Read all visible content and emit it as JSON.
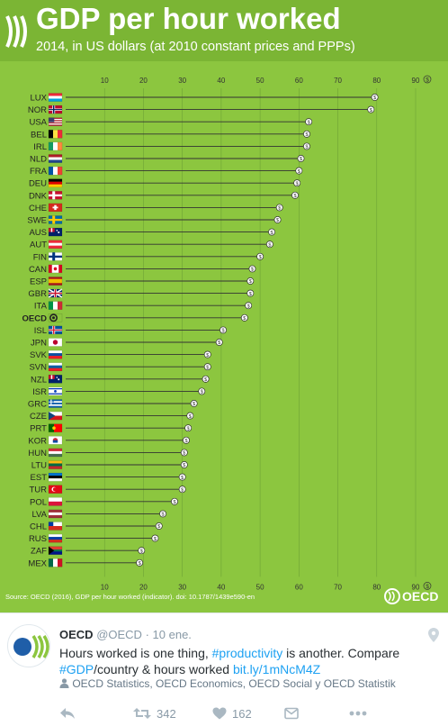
{
  "header": {
    "title": "GDP per hour worked",
    "subtitle": "2014, in US dollars (at 2010 constant prices and PPPs)",
    "source": "Source: OECD (2016), GDP per hour worked (indicator). doi: 10.1787/1439e590-en",
    "logo_text": "OECD"
  },
  "colors": {
    "background": "#8cc63f",
    "header_band": "#7bb534",
    "bar_line": "#333333",
    "grid": "#6fa336",
    "text_white": "#ffffff",
    "link_blue": "#1da1f2"
  },
  "chart_data": {
    "type": "bar",
    "orientation": "horizontal",
    "title": "GDP per hour worked",
    "subtitle": "2014, in US dollars (at 2010 constant prices and PPPs)",
    "xlim": [
      0,
      90
    ],
    "x_ticks": [
      10,
      20,
      30,
      40,
      50,
      60,
      70,
      80,
      90
    ],
    "x_unit_symbol": "$",
    "grid": true,
    "categories": [
      "LUX",
      "NOR",
      "USA",
      "BEL",
      "IRL",
      "NLD",
      "FRA",
      "DEU",
      "DNK",
      "CHE",
      "SWE",
      "AUS",
      "AUT",
      "FIN",
      "CAN",
      "ESP",
      "GBR",
      "ITA",
      "OECD",
      "ISL",
      "JPN",
      "SVK",
      "SVN",
      "NZL",
      "ISR",
      "GRC",
      "CZE",
      "PRT",
      "KOR",
      "HUN",
      "LTU",
      "EST",
      "TUR",
      "POL",
      "LVA",
      "CHL",
      "RUS",
      "ZAF",
      "MEX"
    ],
    "values": [
      79.5,
      78.5,
      62.5,
      62,
      62,
      60.5,
      60,
      59.5,
      59,
      55,
      54.5,
      53,
      52.5,
      50,
      48,
      47.5,
      47.5,
      47,
      46,
      40.5,
      39.5,
      36.5,
      36.5,
      36,
      35,
      33,
      32,
      31.5,
      31,
      30.5,
      30.5,
      30,
      30,
      28,
      25,
      24,
      23,
      19.5,
      19
    ],
    "flags": [
      "lux",
      "nor",
      "usa",
      "bel",
      "irl",
      "nld",
      "fra",
      "deu",
      "dnk",
      "che",
      "swe",
      "aus",
      "aut",
      "fin",
      "can",
      "esp",
      "gbr",
      "ita",
      "oecd",
      "isl",
      "jpn",
      "svk",
      "svn",
      "nzl",
      "isr",
      "grc",
      "cze",
      "prt",
      "kor",
      "hun",
      "ltu",
      "est",
      "tur",
      "pol",
      "lva",
      "chl",
      "rus",
      "zaf",
      "mex"
    ]
  },
  "tweet": {
    "name": "OECD",
    "handle": "@OECD",
    "dot": "·",
    "time": "10 ene.",
    "text_1": "Hours worked is one thing, ",
    "hashtag_1": "#productivity",
    "text_2": " is another. Compare ",
    "hashtag_2": "#GDP",
    "text_3": "/country & hours worked ",
    "link": "bit.ly/1mNcM4Z",
    "lists": "OECD Statistics, OECD Economics, OECD Social y OECD Statistik",
    "retweets": "342",
    "likes": "162"
  },
  "icons": [
    "oecd-logo-icon",
    "location-icon",
    "person-icon",
    "reply-icon",
    "retweet-icon",
    "heart-icon",
    "more-icon"
  ]
}
